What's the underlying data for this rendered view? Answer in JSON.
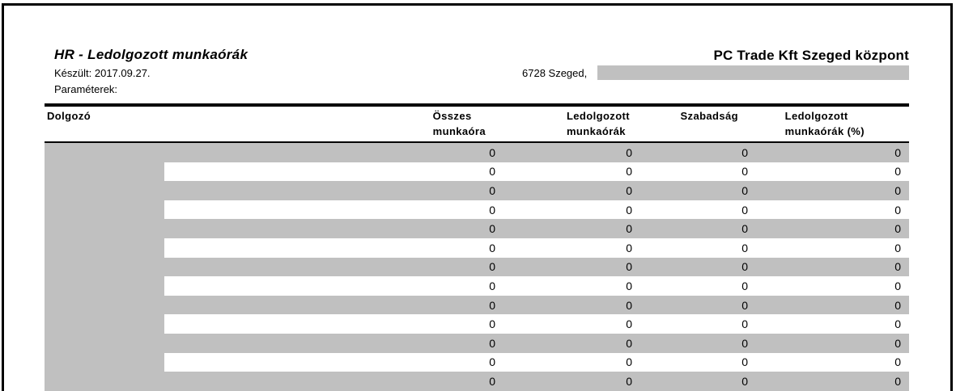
{
  "header": {
    "title": "HR - Ledolgozott munkaórák",
    "created": "Készült: 2017.09.27.",
    "parameters_label": "Paraméterek:",
    "company": "PC Trade Kft Szeged központ",
    "address_prefix": "6728 Szeged,"
  },
  "table": {
    "columns": [
      {
        "label": "Dolgozó",
        "lines": [
          "Dolgozó"
        ]
      },
      {
        "label": "Összes munkaóra",
        "lines": [
          "Összes",
          "munkaóra"
        ]
      },
      {
        "label": "Ledolgozott munkaórák",
        "lines": [
          "Ledolgozott",
          "munkaórák"
        ]
      },
      {
        "label": "Szabadság",
        "lines": [
          "Szabadság"
        ]
      },
      {
        "label": "Ledolgozott munkaórák (%)",
        "lines": [
          "Ledolgozott",
          "munkaórák (%)"
        ]
      }
    ],
    "rows": [
      {
        "name": "",
        "values": [
          "0",
          "0",
          "0",
          "0"
        ]
      },
      {
        "name": "",
        "values": [
          "0",
          "0",
          "0",
          "0"
        ]
      },
      {
        "name": "",
        "values": [
          "0",
          "0",
          "0",
          "0"
        ]
      },
      {
        "name": "",
        "values": [
          "0",
          "0",
          "0",
          "0"
        ]
      },
      {
        "name": "",
        "values": [
          "0",
          "0",
          "0",
          "0"
        ]
      },
      {
        "name": "",
        "values": [
          "0",
          "0",
          "0",
          "0"
        ]
      },
      {
        "name": "",
        "values": [
          "0",
          "0",
          "0",
          "0"
        ]
      },
      {
        "name": "",
        "values": [
          "0",
          "0",
          "0",
          "0"
        ]
      },
      {
        "name": "",
        "values": [
          "0",
          "0",
          "0",
          "0"
        ]
      },
      {
        "name": "",
        "values": [
          "0",
          "0",
          "0",
          "0"
        ]
      },
      {
        "name": "",
        "values": [
          "0",
          "0",
          "0",
          "0"
        ]
      },
      {
        "name": "",
        "values": [
          "0",
          "0",
          "0",
          "0"
        ]
      },
      {
        "name": "",
        "values": [
          "0",
          "0",
          "0",
          "0"
        ]
      }
    ]
  },
  "colors": {
    "stripe": "#c0c0c0",
    "redaction": "#c0c0c0",
    "rule": "#000000",
    "text": "#000000",
    "page_border": "#000000"
  }
}
